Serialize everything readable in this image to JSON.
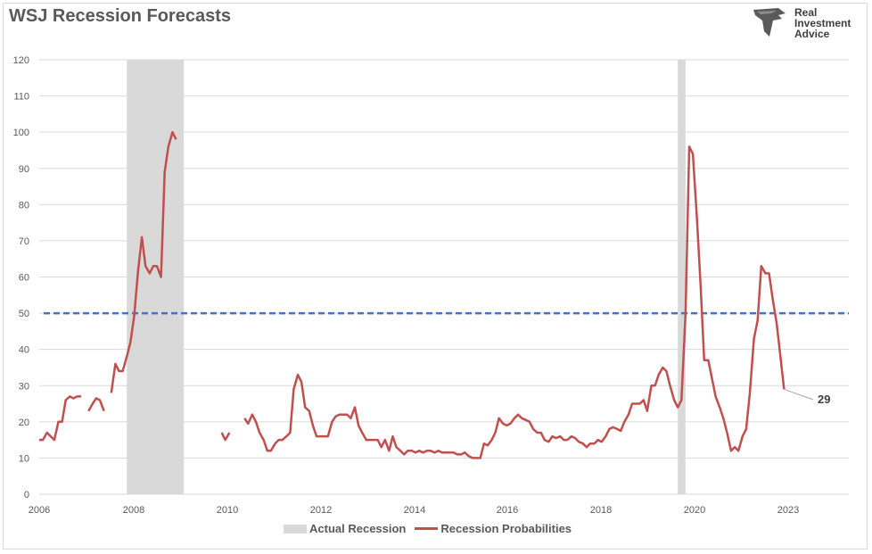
{
  "title": "WSJ Recession Forecasts",
  "logo": {
    "line1": "Real",
    "line2": "Investment",
    "line3": "Advice",
    "icon": "eagle-icon"
  },
  "legend": {
    "recession": "Actual Recession",
    "probabilities": "Recession Probabilities"
  },
  "last_value_label": "29",
  "colors": {
    "line": "#c0504d",
    "threshold": "#4472c4",
    "recession": "#d9d9d9",
    "grid": "#d9d9d9"
  },
  "chart_data": {
    "type": "line",
    "title": "WSJ Recession Forecasts",
    "xlabel": "",
    "ylabel": "",
    "xlim": [
      2006,
      2023.75
    ],
    "ylim": [
      0,
      120
    ],
    "yticks": [
      0,
      10,
      20,
      30,
      40,
      50,
      60,
      70,
      80,
      90,
      100,
      110,
      120
    ],
    "xticks": [
      "2006",
      "2008",
      "2010",
      "2012",
      "2014",
      "2016",
      "2018",
      "2020",
      "2023"
    ],
    "grid": true,
    "legend_position": "bottom",
    "threshold": 50,
    "recession_periods": [
      [
        2007.92,
        2009.17
      ],
      [
        2020.0,
        2020.17
      ]
    ],
    "series": [
      {
        "name": "Recession Probabilities",
        "segments": [
          [
            [
              2006.0,
              15
            ],
            [
              2006.08,
              15
            ],
            [
              2006.17,
              17
            ],
            [
              2006.25,
              16
            ],
            [
              2006.33,
              15
            ],
            [
              2006.42,
              20
            ],
            [
              2006.5,
              20
            ],
            [
              2006.58,
              26
            ],
            [
              2006.67,
              27
            ],
            [
              2006.75,
              26.5
            ],
            [
              2006.83,
              27
            ],
            [
              2006.92,
              27
            ]
          ],
          [
            [
              2007.08,
              23
            ],
            [
              2007.17,
              25
            ],
            [
              2007.25,
              26.5
            ],
            [
              2007.33,
              26
            ],
            [
              2007.42,
              23
            ]
          ],
          [
            [
              2007.58,
              28
            ],
            [
              2007.67,
              36
            ],
            [
              2007.75,
              34
            ],
            [
              2007.83,
              34
            ],
            [
              2007.92,
              38
            ],
            [
              2008.0,
              42
            ],
            [
              2008.08,
              49
            ],
            [
              2008.17,
              62
            ],
            [
              2008.25,
              71
            ],
            [
              2008.33,
              63
            ],
            [
              2008.42,
              61
            ],
            [
              2008.5,
              63
            ],
            [
              2008.58,
              63
            ],
            [
              2008.67,
              60
            ],
            [
              2008.75,
              89
            ],
            [
              2008.83,
              96
            ],
            [
              2008.92,
              100
            ],
            [
              2009.0,
              98
            ]
          ]
        ],
        "segments2": [
          [
            [
              2010.0,
              17
            ],
            [
              2010.08,
              15
            ],
            [
              2010.17,
              17
            ]
          ],
          [
            [
              2010.5,
              21
            ],
            [
              2010.58,
              19.5
            ],
            [
              2010.67,
              22
            ],
            [
              2010.75,
              20
            ],
            [
              2010.83,
              17
            ],
            [
              2010.92,
              15
            ],
            [
              2011.0,
              12
            ],
            [
              2011.08,
              12
            ],
            [
              2011.17,
              14
            ],
            [
              2011.25,
              15
            ],
            [
              2011.33,
              15
            ],
            [
              2011.42,
              16
            ],
            [
              2011.5,
              17
            ],
            [
              2011.58,
              29
            ],
            [
              2011.67,
              33
            ],
            [
              2011.75,
              31
            ],
            [
              2011.83,
              24
            ],
            [
              2011.92,
              23
            ],
            [
              2012.0,
              19
            ],
            [
              2012.08,
              16
            ],
            [
              2012.17,
              16
            ],
            [
              2012.25,
              16
            ],
            [
              2012.33,
              16
            ],
            [
              2012.42,
              20
            ],
            [
              2012.5,
              21.5
            ],
            [
              2012.58,
              22
            ],
            [
              2012.67,
              22
            ],
            [
              2012.75,
              22
            ],
            [
              2012.83,
              21
            ],
            [
              2012.92,
              24
            ],
            [
              2013.0,
              19
            ],
            [
              2013.08,
              17
            ],
            [
              2013.17,
              15
            ],
            [
              2013.25,
              15
            ],
            [
              2013.33,
              15
            ],
            [
              2013.42,
              15
            ],
            [
              2013.5,
              13
            ],
            [
              2013.58,
              15
            ],
            [
              2013.67,
              12
            ],
            [
              2013.75,
              16
            ],
            [
              2013.83,
              13
            ],
            [
              2013.92,
              12
            ],
            [
              2014.0,
              11
            ],
            [
              2014.08,
              12
            ],
            [
              2014.17,
              12
            ],
            [
              2014.25,
              11.5
            ],
            [
              2014.33,
              12
            ],
            [
              2014.42,
              11.5
            ],
            [
              2014.5,
              12
            ],
            [
              2014.58,
              12
            ],
            [
              2014.67,
              11.5
            ],
            [
              2014.75,
              12
            ],
            [
              2014.83,
              11.5
            ],
            [
              2014.92,
              11.5
            ],
            [
              2015.0,
              11.5
            ],
            [
              2015.08,
              11.5
            ],
            [
              2015.17,
              11
            ],
            [
              2015.25,
              11
            ],
            [
              2015.33,
              11.5
            ],
            [
              2015.42,
              10.5
            ],
            [
              2015.5,
              10
            ],
            [
              2015.58,
              10
            ],
            [
              2015.67,
              10
            ],
            [
              2015.75,
              14
            ],
            [
              2015.83,
              13.5
            ],
            [
              2015.92,
              15
            ],
            [
              2016.0,
              17
            ],
            [
              2016.08,
              21
            ],
            [
              2016.17,
              19.5
            ],
            [
              2016.25,
              19
            ],
            [
              2016.33,
              19.5
            ],
            [
              2016.42,
              21
            ],
            [
              2016.5,
              22
            ],
            [
              2016.58,
              21
            ],
            [
              2016.67,
              20.5
            ],
            [
              2016.75,
              20
            ],
            [
              2016.83,
              18
            ],
            [
              2016.92,
              17
            ],
            [
              2017.0,
              17
            ],
            [
              2017.08,
              15
            ],
            [
              2017.17,
              14.5
            ],
            [
              2017.25,
              16
            ],
            [
              2017.33,
              15.5
            ],
            [
              2017.42,
              16
            ],
            [
              2017.5,
              15
            ],
            [
              2017.58,
              15
            ],
            [
              2017.67,
              16
            ],
            [
              2017.75,
              15.5
            ],
            [
              2017.83,
              14.5
            ],
            [
              2017.92,
              14
            ],
            [
              2018.0,
              13
            ],
            [
              2018.08,
              14
            ],
            [
              2018.17,
              14
            ],
            [
              2018.25,
              15
            ],
            [
              2018.33,
              14.5
            ],
            [
              2018.42,
              16
            ],
            [
              2018.5,
              18
            ],
            [
              2018.58,
              18.5
            ],
            [
              2018.67,
              18
            ],
            [
              2018.75,
              17.5
            ],
            [
              2018.83,
              20
            ],
            [
              2018.92,
              22
            ],
            [
              2019.0,
              25
            ],
            [
              2019.08,
              25
            ],
            [
              2019.17,
              25
            ],
            [
              2019.25,
              26
            ],
            [
              2019.33,
              23
            ],
            [
              2019.42,
              30
            ],
            [
              2019.5,
              30
            ],
            [
              2019.58,
              33
            ],
            [
              2019.67,
              35
            ],
            [
              2019.75,
              34
            ],
            [
              2019.83,
              30
            ],
            [
              2019.92,
              26
            ],
            [
              2020.0,
              24
            ],
            [
              2020.08,
              26
            ],
            [
              2020.17,
              50
            ],
            [
              2020.25,
              96
            ],
            [
              2020.33,
              94
            ],
            [
              2020.42,
              76
            ],
            [
              2020.5,
              58
            ],
            [
              2020.58,
              37
            ],
            [
              2020.67,
              37
            ],
            [
              2020.75,
              32
            ],
            [
              2020.83,
              27
            ],
            [
              2020.92,
              24
            ],
            [
              2021.0,
              21
            ],
            [
              2021.08,
              17
            ],
            [
              2021.17,
              12
            ],
            [
              2021.25,
              13
            ],
            [
              2021.33,
              12
            ],
            [
              2021.42,
              16
            ],
            [
              2021.5,
              18
            ],
            [
              2021.58,
              28
            ],
            [
              2021.67,
              43
            ],
            [
              2021.75,
              48
            ],
            [
              2021.83,
              63
            ],
            [
              2021.92,
              61
            ],
            [
              2022.0,
              61
            ],
            [
              2022.08,
              54
            ],
            [
              2022.17,
              47
            ],
            [
              2022.25,
              38
            ],
            [
              2022.33,
              29
            ]
          ]
        ]
      }
    ],
    "last_label": 29
  }
}
